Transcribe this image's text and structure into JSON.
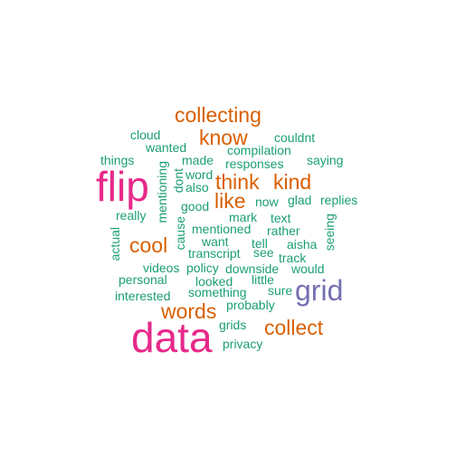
{
  "colors": {
    "small": "#1b9e77",
    "medium": "#d95f02",
    "grid": "#7570b3",
    "large": "#e7298a"
  },
  "words": [
    {
      "id": "flip",
      "text": "flip",
      "tier": "large"
    },
    {
      "id": "data",
      "text": "data",
      "tier": "large"
    },
    {
      "id": "grid",
      "text": "grid",
      "tier": "grid"
    },
    {
      "id": "collecting",
      "text": "collecting",
      "tier": "medium"
    },
    {
      "id": "know",
      "text": "know",
      "tier": "medium"
    },
    {
      "id": "think",
      "text": "think",
      "tier": "medium"
    },
    {
      "id": "kind",
      "text": "kind",
      "tier": "medium"
    },
    {
      "id": "like",
      "text": "like",
      "tier": "medium"
    },
    {
      "id": "cool",
      "text": "cool",
      "tier": "medium"
    },
    {
      "id": "words",
      "text": "words",
      "tier": "medium"
    },
    {
      "id": "collect",
      "text": "collect",
      "tier": "medium"
    },
    {
      "id": "cloud",
      "text": "cloud",
      "tier": "small"
    },
    {
      "id": "couldnt",
      "text": "couldnt",
      "tier": "small"
    },
    {
      "id": "wanted",
      "text": "wanted",
      "tier": "small"
    },
    {
      "id": "compilation",
      "text": "compilation",
      "tier": "small"
    },
    {
      "id": "things",
      "text": "things",
      "tier": "small"
    },
    {
      "id": "made",
      "text": "made",
      "tier": "small"
    },
    {
      "id": "saying",
      "text": "saying",
      "tier": "small"
    },
    {
      "id": "responses",
      "text": "responses",
      "tier": "small"
    },
    {
      "id": "word",
      "text": "word",
      "tier": "small"
    },
    {
      "id": "also",
      "text": "also",
      "tier": "small"
    },
    {
      "id": "mentioning",
      "text": "mentioning",
      "tier": "small",
      "vertical": true
    },
    {
      "id": "dont",
      "text": "dont",
      "tier": "small",
      "vertical": true
    },
    {
      "id": "glad",
      "text": "glad",
      "tier": "small"
    },
    {
      "id": "replies",
      "text": "replies",
      "tier": "small"
    },
    {
      "id": "good",
      "text": "good",
      "tier": "small"
    },
    {
      "id": "now",
      "text": "now",
      "tier": "small"
    },
    {
      "id": "really",
      "text": "really",
      "tier": "small"
    },
    {
      "id": "mark",
      "text": "mark",
      "tier": "small"
    },
    {
      "id": "text",
      "text": "text",
      "tier": "small"
    },
    {
      "id": "mentioned",
      "text": "mentioned",
      "tier": "small"
    },
    {
      "id": "rather",
      "text": "rather",
      "tier": "small"
    },
    {
      "id": "cause",
      "text": "cause",
      "tier": "small",
      "vertical": true
    },
    {
      "id": "want",
      "text": "want",
      "tier": "small"
    },
    {
      "id": "tell",
      "text": "tell",
      "tier": "small"
    },
    {
      "id": "aisha",
      "text": "aisha",
      "tier": "small"
    },
    {
      "id": "seeing",
      "text": "seeing",
      "tier": "small",
      "vertical": true
    },
    {
      "id": "actual",
      "text": "actual",
      "tier": "small",
      "vertical": true
    },
    {
      "id": "transcript",
      "text": "transcript",
      "tier": "small"
    },
    {
      "id": "see",
      "text": "see",
      "tier": "small"
    },
    {
      "id": "track",
      "text": "track",
      "tier": "small"
    },
    {
      "id": "videos",
      "text": "videos",
      "tier": "small"
    },
    {
      "id": "policy",
      "text": "policy",
      "tier": "small"
    },
    {
      "id": "downside",
      "text": "downside",
      "tier": "small"
    },
    {
      "id": "would",
      "text": "would",
      "tier": "small"
    },
    {
      "id": "personal",
      "text": "personal",
      "tier": "small"
    },
    {
      "id": "looked",
      "text": "looked",
      "tier": "small"
    },
    {
      "id": "little",
      "text": "little",
      "tier": "small"
    },
    {
      "id": "interested",
      "text": "interested",
      "tier": "small"
    },
    {
      "id": "something",
      "text": "something",
      "tier": "small"
    },
    {
      "id": "sure",
      "text": "sure",
      "tier": "small"
    },
    {
      "id": "probably",
      "text": "probably",
      "tier": "small"
    },
    {
      "id": "grids",
      "text": "grids",
      "tier": "small"
    },
    {
      "id": "privacy",
      "text": "privacy",
      "tier": "small"
    }
  ]
}
